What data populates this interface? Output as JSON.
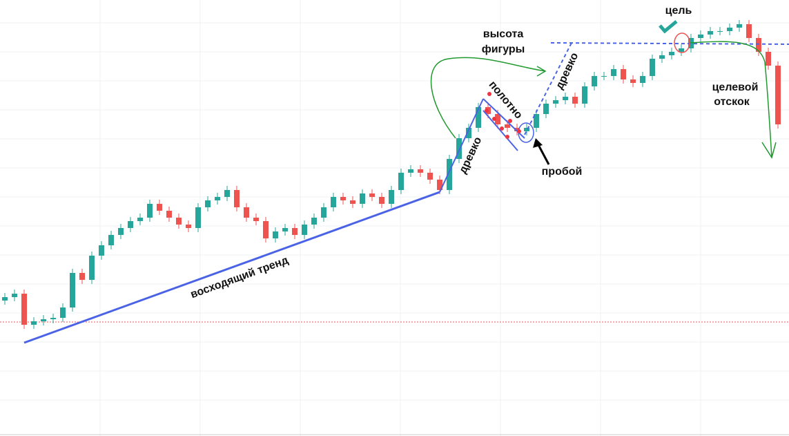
{
  "chart_data": {
    "type": "candlestick",
    "up_color": "#26a69a",
    "down_color": "#ef5350",
    "ylim": [
      0,
      631
    ],
    "ohlc": [
      [
        196,
        207,
        190,
        201
      ],
      [
        201,
        212,
        195,
        206
      ],
      [
        206,
        212,
        155,
        161
      ],
      [
        161,
        172,
        155,
        166
      ],
      [
        166,
        175,
        160,
        169
      ],
      [
        169,
        177,
        163,
        171
      ],
      [
        171,
        192,
        165,
        186
      ],
      [
        186,
        242,
        180,
        236
      ],
      [
        236,
        242,
        220,
        226
      ],
      [
        226,
        267,
        220,
        261
      ],
      [
        261,
        282,
        255,
        276
      ],
      [
        276,
        297,
        270,
        291
      ],
      [
        291,
        307,
        285,
        301
      ],
      [
        301,
        317,
        295,
        311
      ],
      [
        311,
        322,
        305,
        316
      ],
      [
        316,
        342,
        310,
        336
      ],
      [
        336,
        342,
        320,
        326
      ],
      [
        326,
        332,
        310,
        316
      ],
      [
        316,
        322,
        300,
        306
      ],
      [
        306,
        312,
        295,
        301
      ],
      [
        301,
        337,
        295,
        331
      ],
      [
        331,
        347,
        325,
        341
      ],
      [
        341,
        352,
        335,
        346
      ],
      [
        346,
        362,
        340,
        356
      ],
      [
        356,
        362,
        325,
        331
      ],
      [
        331,
        337,
        310,
        316
      ],
      [
        316,
        322,
        305,
        311
      ],
      [
        311,
        317,
        280,
        286
      ],
      [
        286,
        302,
        280,
        296
      ],
      [
        296,
        307,
        290,
        301
      ],
      [
        301,
        307,
        285,
        291
      ],
      [
        291,
        312,
        285,
        306
      ],
      [
        306,
        322,
        300,
        316
      ],
      [
        316,
        337,
        310,
        331
      ],
      [
        331,
        352,
        325,
        346
      ],
      [
        346,
        352,
        335,
        341
      ],
      [
        341,
        347,
        330,
        336
      ],
      [
        336,
        357,
        330,
        351
      ],
      [
        351,
        357,
        340,
        346
      ],
      [
        346,
        352,
        330,
        336
      ],
      [
        336,
        362,
        330,
        356
      ],
      [
        356,
        387,
        350,
        381
      ],
      [
        381,
        392,
        375,
        386
      ],
      [
        386,
        392,
        375,
        381
      ],
      [
        381,
        387,
        365,
        371
      ],
      [
        371,
        377,
        350,
        356
      ],
      [
        356,
        407,
        350,
        401
      ],
      [
        401,
        437,
        395,
        431
      ],
      [
        431,
        452,
        425,
        446
      ],
      [
        446,
        482,
        440,
        476
      ],
      [
        476,
        482,
        460,
        466
      ],
      [
        466,
        472,
        445,
        451
      ],
      [
        451,
        457,
        440,
        446
      ],
      [
        446,
        452,
        435,
        441
      ],
      [
        441,
        452,
        435,
        446
      ],
      [
        446,
        472,
        440,
        466
      ],
      [
        466,
        487,
        460,
        481
      ],
      [
        481,
        492,
        475,
        486
      ],
      [
        486,
        497,
        480,
        491
      ],
      [
        491,
        497,
        475,
        481
      ],
      [
        481,
        512,
        475,
        506
      ],
      [
        506,
        527,
        500,
        521
      ],
      [
        521,
        527,
        515,
        521
      ],
      [
        521,
        537,
        515,
        531
      ],
      [
        531,
        537,
        510,
        516
      ],
      [
        516,
        522,
        505,
        511
      ],
      [
        511,
        527,
        505,
        521
      ],
      [
        521,
        552,
        515,
        546
      ],
      [
        546,
        557,
        540,
        551
      ],
      [
        551,
        562,
        545,
        556
      ],
      [
        556,
        567,
        550,
        561
      ],
      [
        561,
        582,
        555,
        576
      ],
      [
        576,
        587,
        570,
        581
      ],
      [
        581,
        592,
        575,
        586
      ],
      [
        586,
        592,
        580,
        586
      ],
      [
        586,
        597,
        580,
        591
      ],
      [
        591,
        602,
        585,
        596
      ],
      [
        596,
        602,
        570,
        576
      ],
      [
        576,
        582,
        550,
        556
      ],
      [
        556,
        562,
        530,
        536
      ],
      [
        536,
        542,
        445,
        451
      ]
    ],
    "annotations": {
      "trend": "восходящий тренд",
      "pole1": "древко",
      "flag": "полотно",
      "breakout": "пробой",
      "pole2": "древко",
      "height": [
        "высота",
        "фигуры"
      ],
      "target": "цель",
      "rebound": [
        "целевой",
        "отскок"
      ]
    }
  }
}
